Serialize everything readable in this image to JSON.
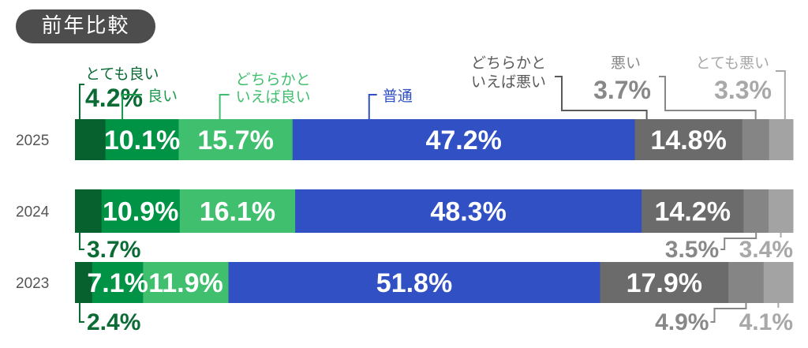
{
  "title": "前年比較",
  "chart_data": {
    "type": "bar",
    "orientation": "horizontal-stacked-100",
    "title": "前年比較",
    "categories": [
      "とても良い",
      "良い",
      "どちらかといえば良い",
      "普通",
      "どちらかといえば悪い",
      "悪い",
      "とても悪い"
    ],
    "category_lines": [
      [
        "とても良い"
      ],
      [
        "良い"
      ],
      [
        "どちらかと",
        "いえば良い"
      ],
      [
        "普通"
      ],
      [
        "どちらかと",
        "いえば悪い"
      ],
      [
        "悪い"
      ],
      [
        "とても悪い"
      ]
    ],
    "colors": [
      "#07612f",
      "#009245",
      "#40bf6e",
      "#3050c3",
      "#6b6b6b",
      "#858585",
      "#a3a3a3"
    ],
    "label_colors": [
      "#0b6b35",
      "#1a9a4a",
      "#40bf6e",
      "#3050c3",
      "#5a5a5a",
      "#888888",
      "#a8a8a8"
    ],
    "unit": "%",
    "rows": [
      {
        "year": "2025",
        "values": [
          4.2,
          10.1,
          15.7,
          47.2,
          14.8,
          3.7,
          3.3
        ]
      },
      {
        "year": "2024",
        "values": [
          3.7,
          10.9,
          16.1,
          48.3,
          14.2,
          3.5,
          3.4
        ]
      },
      {
        "year": "2023",
        "values": [
          2.4,
          7.1,
          11.9,
          51.8,
          17.9,
          4.9,
          4.1
        ]
      }
    ],
    "xlabel": "",
    "ylabel": "",
    "grid": false
  }
}
